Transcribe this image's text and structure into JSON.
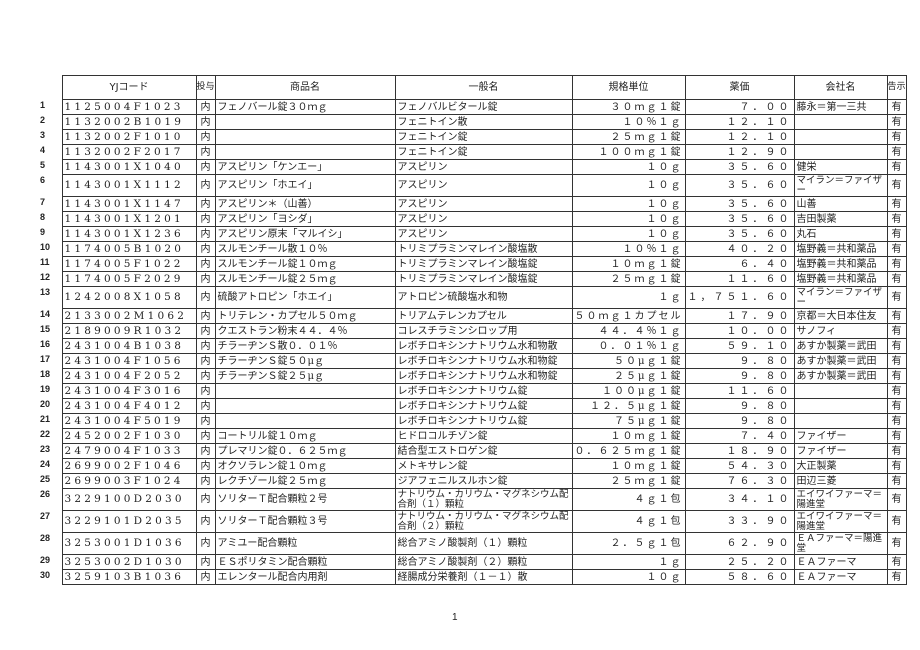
{
  "headers": {
    "code": "YJコード",
    "route": "投与",
    "brand": "商品名",
    "generic": "一般名",
    "unit": "規格単位",
    "price": "薬価",
    "company": "会社名",
    "notice": "告示"
  },
  "rows": [
    {
      "n": "1",
      "code": "1125004F1023",
      "route": "内",
      "brand": "フェノバール錠３０ｍｇ",
      "generic": "フェノバルビタール錠",
      "unit": "３０ｍｇ１錠",
      "price": "７．００",
      "company": "藤永＝第一三共",
      "notice": "有"
    },
    {
      "n": "2",
      "code": "1132002B1019",
      "route": "内",
      "brand": "",
      "generic": "フェニトイン散",
      "unit": "１０％１ｇ",
      "price": "１２．１０",
      "company": "",
      "notice": "有"
    },
    {
      "n": "3",
      "code": "1132002F1010",
      "route": "内",
      "brand": "",
      "generic": "フェニトイン錠",
      "unit": "２５ｍｇ１錠",
      "price": "１２．１０",
      "company": "",
      "notice": "有"
    },
    {
      "n": "4",
      "code": "1132002F2017",
      "route": "内",
      "brand": "",
      "generic": "フェニトイン錠",
      "unit": "１００ｍｇ１錠",
      "price": "１２．９０",
      "company": "",
      "notice": "有"
    },
    {
      "n": "5",
      "code": "1143001X1040",
      "route": "内",
      "brand": "アスピリン「ケンエー」",
      "generic": "アスピリン",
      "unit": "１０ｇ",
      "price": "３５．６０",
      "company": "健栄",
      "notice": "有"
    },
    {
      "n": "6",
      "code": "1143001X1112",
      "route": "内",
      "brand": "アスピリン「ホエイ」",
      "generic": "アスピリン",
      "unit": "１０ｇ",
      "price": "３５．６０",
      "company": "マイラン＝ファイザー",
      "notice": "有",
      "tall": true
    },
    {
      "n": "7",
      "code": "1143001X1147",
      "route": "内",
      "brand": "アスピリン＊（山善）",
      "generic": "アスピリン",
      "unit": "１０ｇ",
      "price": "３５．６０",
      "company": "山善",
      "notice": "有"
    },
    {
      "n": "8",
      "code": "1143001X1201",
      "route": "内",
      "brand": "アスピリン「ヨシダ」",
      "generic": "アスピリン",
      "unit": "１０ｇ",
      "price": "３５．６０",
      "company": "吉田製薬",
      "notice": "有"
    },
    {
      "n": "9",
      "code": "1143001X1236",
      "route": "内",
      "brand": "アスピリン原末「マルイシ」",
      "generic": "アスピリン",
      "unit": "１０ｇ",
      "price": "３５．６０",
      "company": "丸石",
      "notice": "有"
    },
    {
      "n": "10",
      "code": "1174005B1020",
      "route": "内",
      "brand": "スルモンチール散１０％",
      "generic": "トリミプラミンマレイン酸塩散",
      "unit": "１０％１ｇ",
      "price": "４０．２０",
      "company": "塩野義＝共和薬品",
      "notice": "有"
    },
    {
      "n": "11",
      "code": "1174005F1022",
      "route": "内",
      "brand": "スルモンチール錠１０ｍｇ",
      "generic": "トリミプラミンマレイン酸塩錠",
      "unit": "１０ｍｇ１錠",
      "price": "６．４０",
      "company": "塩野義＝共和薬品",
      "notice": "有"
    },
    {
      "n": "12",
      "code": "1174005F2029",
      "route": "内",
      "brand": "スルモンチール錠２５ｍｇ",
      "generic": "トリミプラミンマレイン酸塩錠",
      "unit": "２５ｍｇ１錠",
      "price": "１１．６０",
      "company": "塩野義＝共和薬品",
      "notice": "有"
    },
    {
      "n": "13",
      "code": "1242008X1058",
      "route": "内",
      "brand": "硫酸アトロピン「ホエイ」",
      "generic": "アトロピン硫酸塩水和物",
      "unit": "１ｇ",
      "price": "１，７５１．６０",
      "company": "マイラン＝ファイザー",
      "notice": "有",
      "tall": true
    },
    {
      "n": "14",
      "code": "2133002M1062",
      "route": "内",
      "brand": "トリテレン・カプセル５０ｍｇ",
      "generic": "トリアムテレンカプセル",
      "unit": "５０ｍｇ１カプセル",
      "price": "１７．９０",
      "company": "京都＝大日本住友",
      "notice": "有"
    },
    {
      "n": "15",
      "code": "2189009R1032",
      "route": "内",
      "brand": "クエストラン粉末４４．４％",
      "generic": "コレスチラミンシロップ用",
      "unit": "４４．４％１ｇ",
      "price": "１０．００",
      "company": "サノフィ",
      "notice": "有"
    },
    {
      "n": "16",
      "code": "2431004B1038",
      "route": "内",
      "brand": "チラーヂンＳ散０．０１％",
      "generic": "レボチロキシンナトリウム水和物散",
      "unit": "０．０１％１ｇ",
      "price": "５９．１０",
      "company": "あすか製薬＝武田",
      "notice": "有"
    },
    {
      "n": "17",
      "code": "2431004F1056",
      "route": "内",
      "brand": "チラーヂンＳ錠５０μｇ",
      "generic": "レボチロキシンナトリウム水和物錠",
      "unit": "５０μｇ１錠",
      "price": "９．８０",
      "company": "あすか製薬＝武田",
      "notice": "有"
    },
    {
      "n": "18",
      "code": "2431004F2052",
      "route": "内",
      "brand": "チラーヂンＳ錠２５μｇ",
      "generic": "レボチロキシンナトリウム水和物錠",
      "unit": "２５μｇ１錠",
      "price": "９．８０",
      "company": "あすか製薬＝武田",
      "notice": "有"
    },
    {
      "n": "19",
      "code": "2431004F3016",
      "route": "内",
      "brand": "",
      "generic": "レボチロキシンナトリウム錠",
      "unit": "１００μｇ１錠",
      "price": "１１．６０",
      "company": "",
      "notice": "有"
    },
    {
      "n": "20",
      "code": "2431004F4012",
      "route": "内",
      "brand": "",
      "generic": "レボチロキシンナトリウム錠",
      "unit": "１２．５μｇ１錠",
      "price": "９．８０",
      "company": "",
      "notice": "有"
    },
    {
      "n": "21",
      "code": "2431004F5019",
      "route": "内",
      "brand": "",
      "generic": "レボチロキシンナトリウム錠",
      "unit": "７５μｇ１錠",
      "price": "９．８０",
      "company": "",
      "notice": "有"
    },
    {
      "n": "22",
      "code": "2452002F1030",
      "route": "内",
      "brand": "コートリル錠１０ｍｇ",
      "generic": "ヒドロコルチゾン錠",
      "unit": "１０ｍｇ１錠",
      "price": "７．４０",
      "company": "ファイザー",
      "notice": "有"
    },
    {
      "n": "23",
      "code": "2479004F1033",
      "route": "内",
      "brand": "プレマリン錠０．６２５ｍｇ",
      "generic": "結合型エストロゲン錠",
      "unit": "０．６２５ｍｇ１錠",
      "price": "１８．９０",
      "company": "ファイザー",
      "notice": "有"
    },
    {
      "n": "24",
      "code": "2699002F1046",
      "route": "内",
      "brand": "オクソラレン錠１０ｍｇ",
      "generic": "メトキサレン錠",
      "unit": "１０ｍｇ１錠",
      "price": "５４．３０",
      "company": "大正製薬",
      "notice": "有"
    },
    {
      "n": "25",
      "code": "2699003F1024",
      "route": "内",
      "brand": "レクチゾール錠２５ｍｇ",
      "generic": "ジアフェニルスルホン錠",
      "unit": "２５ｍｇ１錠",
      "price": "７６．３０",
      "company": "田辺三菱",
      "notice": "有"
    },
    {
      "n": "26",
      "code": "3229100D2030",
      "route": "内",
      "brand": "ソリターＴ配合顆粒２号",
      "generic": "ナトリウム・カリウム・マグネシウム配合剤（１）顆粒",
      "unit": "４ｇ１包",
      "price": "３４．１０",
      "company": "エイワイファーマ＝陽進堂",
      "notice": "有",
      "tall": true
    },
    {
      "n": "27",
      "code": "3229101D2035",
      "route": "内",
      "brand": "ソリターＴ配合顆粒３号",
      "generic": "ナトリウム・カリウム・マグネシウム配合剤（２）顆粒",
      "unit": "４ｇ１包",
      "price": "３３．９０",
      "company": "エイワイファーマ＝陽進堂",
      "notice": "有",
      "tall": true
    },
    {
      "n": "28",
      "code": "3253001D1036",
      "route": "内",
      "brand": "アミユー配合顆粒",
      "generic": "総合アミノ酸製剤（１）顆粒",
      "unit": "２．５ｇ１包",
      "price": "６２．９０",
      "company": "ＥＡファーマ＝陽進堂",
      "notice": "有",
      "tall": true
    },
    {
      "n": "29",
      "code": "3253002D1030",
      "route": "内",
      "brand": "ＥＳポリタミン配合顆粒",
      "generic": "総合アミノ酸製剤（２）顆粒",
      "unit": "１ｇ",
      "price": "２５．２０",
      "company": "ＥＡファーマ",
      "notice": "有"
    },
    {
      "n": "30",
      "code": "3259103B1036",
      "route": "内",
      "brand": "エレンタール配合内用剤",
      "generic": "経腸成分栄養剤（１－１）散",
      "unit": "１０ｇ",
      "price": "５８．６０",
      "company": "ＥＡファーマ",
      "notice": "有"
    }
  ],
  "footer": {
    "page": "1"
  }
}
